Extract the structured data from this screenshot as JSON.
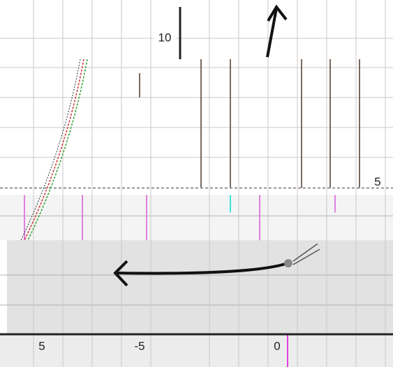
{
  "labels": [
    "10",
    "5",
    "5",
    "-5",
    "0"
  ]
}
